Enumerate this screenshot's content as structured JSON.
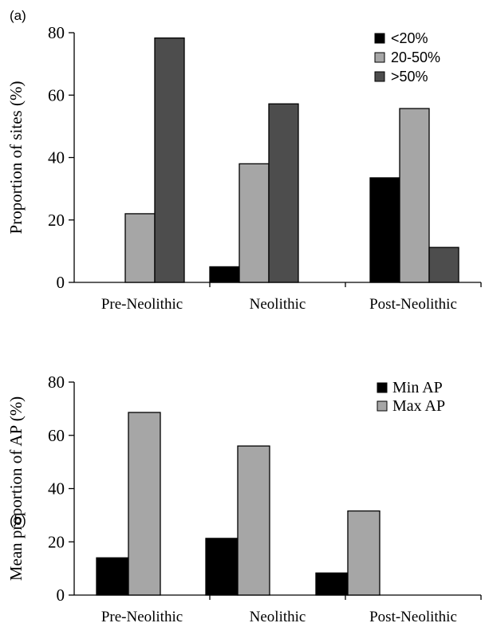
{
  "chart_data": [
    {
      "panel": "(a)",
      "type": "bar",
      "categories": [
        "Pre-Neolithic",
        "Neolithic",
        "Post-Neolithic"
      ],
      "ylabel": "Proportion of sites (%)",
      "ylim": [
        0,
        80
      ],
      "yticks": [
        "0",
        "20",
        "40",
        "60",
        "80"
      ],
      "legend_position": "top-right",
      "series": [
        {
          "name": "<20%",
          "color": "#000000",
          "values": [
            0,
            5,
            33.5
          ]
        },
        {
          "name": "20-50%",
          "color": "#a6a6a6",
          "values": [
            22,
            38,
            55.7
          ]
        },
        {
          "name": ">50%",
          "color": "#4d4d4d",
          "values": [
            78.3,
            57.2,
            11.2
          ]
        }
      ]
    },
    {
      "panel": "(b)",
      "type": "bar",
      "categories": [
        "Pre-Neolithic",
        "Neolithic",
        "Post-Neolithic"
      ],
      "ylabel": "Mean proportion of AP (%)",
      "ylim": [
        0,
        80
      ],
      "yticks": [
        "0",
        "20",
        "40",
        "60",
        "80"
      ],
      "legend_position": "top-right",
      "series": [
        {
          "name": "Min AP",
          "color": "#000000",
          "values": [
            14,
            21.3,
            8.3
          ]
        },
        {
          "name": "Max AP",
          "color": "#a6a6a6",
          "values": [
            68.6,
            56,
            31.6
          ]
        }
      ]
    }
  ]
}
